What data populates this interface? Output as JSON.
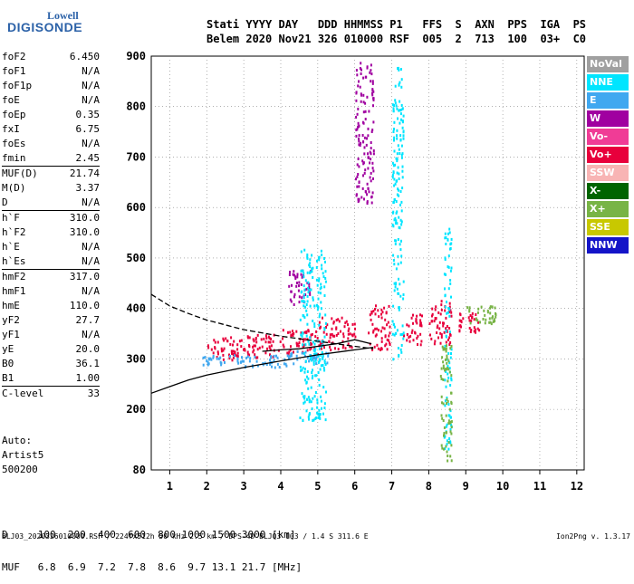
{
  "logo": {
    "line1": "Lowell",
    "line2": "DIGISONDE"
  },
  "header": {
    "line1": "Stati YYYY DAY   DDD HHMMSS P1   FFS  S  AXN  PPS  IGA  PS",
    "line2": "Belem 2020 Nov21 326 010000 RSF  005  2  713  100  03+  C0"
  },
  "params": [
    {
      "k": "foF2",
      "v": "6.450"
    },
    {
      "k": "foF1",
      "v": "N/A"
    },
    {
      "k": "foF1p",
      "v": "N/A"
    },
    {
      "k": "foE",
      "v": "N/A"
    },
    {
      "k": "foEp",
      "v": "0.35"
    },
    {
      "k": "fxI",
      "v": "6.75"
    },
    {
      "k": "foEs",
      "v": "N/A"
    },
    {
      "k": "fmin",
      "v": "2.45"
    },
    {
      "k": "MUF(D)",
      "v": "21.74",
      "sep": true
    },
    {
      "k": "M(D)",
      "v": "3.37"
    },
    {
      "k": "D",
      "v": "N/A"
    },
    {
      "k": "h`F",
      "v": "310.0",
      "sep": true
    },
    {
      "k": "h`F2",
      "v": "310.0"
    },
    {
      "k": "h`E",
      "v": "N/A"
    },
    {
      "k": "h`Es",
      "v": "N/A"
    },
    {
      "k": "hmF2",
      "v": "317.0",
      "sep": true
    },
    {
      "k": "hmF1",
      "v": "N/A"
    },
    {
      "k": "hmE",
      "v": "110.0"
    },
    {
      "k": "yF2",
      "v": "27.7"
    },
    {
      "k": "yF1",
      "v": "N/A"
    },
    {
      "k": "yE",
      "v": "20.0"
    },
    {
      "k": "B0",
      "v": "36.1"
    },
    {
      "k": "B1",
      "v": "1.00"
    },
    {
      "k": "C-level",
      "v": "33",
      "sep": true
    }
  ],
  "auto": {
    "l1": "Auto:",
    "l2": "Artist5",
    "l3": "500200"
  },
  "legend": [
    {
      "label": "NoVal",
      "color": "#a0a0a0"
    },
    {
      "label": "NNE",
      "color": "#00e5ff"
    },
    {
      "label": "E",
      "color": "#40a8f0"
    },
    {
      "label": "W",
      "color": "#a000a0"
    },
    {
      "label": "Vo-",
      "color": "#f03c96"
    },
    {
      "label": "Vo+",
      "color": "#e8003c"
    },
    {
      "label": "SSW",
      "color": "#f8b4b4"
    },
    {
      "label": "X-",
      "color": "#006400"
    },
    {
      "label": "X+",
      "color": "#78b446"
    },
    {
      "label": "SSE",
      "color": "#c8c800"
    },
    {
      "label": "NNW",
      "color": "#1414c8"
    }
  ],
  "dmuf": {
    "d_line": "D     100  200  400  600  800 1000 1500 3000 [km]",
    "muf_line": "MUF   6.8  6.9  7.2  7.8  8.6  9.7 13.1 21.7 [MHz]"
  },
  "footer": {
    "left": "BLJ03_2020326010000.RSF / 224fx512h 50 kHz 2.5 km / DPS-4D BLJ03 103 / 1.4 S 311.6 E",
    "right": "Ion2Png v. 1.3.17"
  },
  "chart_data": {
    "type": "scatter",
    "title": "",
    "xlabel": "",
    "ylabel": "",
    "xlim": [
      0.5,
      12.2
    ],
    "ylim": [
      80,
      900
    ],
    "x_ticks": [
      1,
      2,
      3,
      4,
      5,
      6,
      7,
      8,
      9,
      10,
      11,
      12
    ],
    "y_ticks": [
      80,
      200,
      300,
      400,
      500,
      600,
      700,
      800,
      900
    ],
    "grid": "dotted",
    "legend_placement": "right",
    "series": [
      {
        "name": "Vo+",
        "clusters": [
          {
            "x": [
              2.0,
              3.0
            ],
            "y": [
              300,
              345
            ]
          },
          {
            "x": [
              3.0,
              4.0
            ],
            "y": [
              305,
              350
            ]
          },
          {
            "x": [
              4.0,
              5.0
            ],
            "y": [
              310,
              360
            ]
          },
          {
            "x": [
              5.0,
              6.0
            ],
            "y": [
              320,
              385
            ]
          },
          {
            "x": [
              6.35,
              6.95
            ],
            "y": [
              320,
              410
            ]
          },
          {
            "x": [
              7.3,
              7.8
            ],
            "y": [
              330,
              390
            ]
          },
          {
            "x": [
              8.0,
              8.6
            ],
            "y": [
              330,
              420
            ]
          },
          {
            "x": [
              8.8,
              9.4
            ],
            "y": [
              355,
              395
            ]
          }
        ]
      },
      {
        "name": "E",
        "clusters": [
          {
            "x": [
              1.8,
              3.0
            ],
            "y": [
              290,
              310
            ]
          },
          {
            "x": [
              3.0,
              4.2
            ],
            "y": [
              285,
              310
            ]
          },
          {
            "x": [
              4.2,
              5.3
            ],
            "y": [
              292,
              318
            ]
          }
        ]
      },
      {
        "name": "W",
        "clusters": [
          {
            "x": [
              4.2,
              4.8
            ],
            "y": [
              410,
              480
            ]
          },
          {
            "x": [
              6.0,
              6.5
            ],
            "y": [
              610,
              890
            ]
          }
        ]
      },
      {
        "name": "NNE",
        "clusters": [
          {
            "x": [
              4.5,
              5.2
            ],
            "y": [
              180,
              520
            ]
          },
          {
            "x": [
              7.0,
              7.3
            ],
            "y": [
              300,
              880
            ]
          },
          {
            "x": [
              8.4,
              8.6
            ],
            "y": [
              120,
              560
            ]
          }
        ]
      },
      {
        "name": "X+",
        "clusters": [
          {
            "x": [
              8.3,
              8.6
            ],
            "y": [
              100,
              330
            ]
          },
          {
            "x": [
              9.0,
              9.8
            ],
            "y": [
              370,
              410
            ]
          }
        ]
      }
    ],
    "lines": [
      {
        "style": "solid",
        "x": [
          0.5,
          1.0,
          1.5,
          2.0,
          3.0,
          4.0,
          5.0,
          6.0,
          6.5
        ],
        "y": [
          232,
          245,
          258,
          268,
          283,
          296,
          308,
          318,
          323
        ]
      },
      {
        "style": "dashed",
        "x": [
          0.5,
          1.0,
          1.5,
          2.0,
          3.0,
          4.0,
          5.0,
          6.0,
          6.5
        ],
        "y": [
          428,
          405,
          390,
          377,
          358,
          345,
          335,
          325,
          320
        ]
      },
      {
        "style": "solid",
        "x": [
          3.5,
          4.0,
          4.5,
          5.0,
          5.5,
          6.0,
          6.45
        ],
        "y": [
          315,
          318,
          320,
          325,
          330,
          338,
          330
        ]
      }
    ]
  }
}
